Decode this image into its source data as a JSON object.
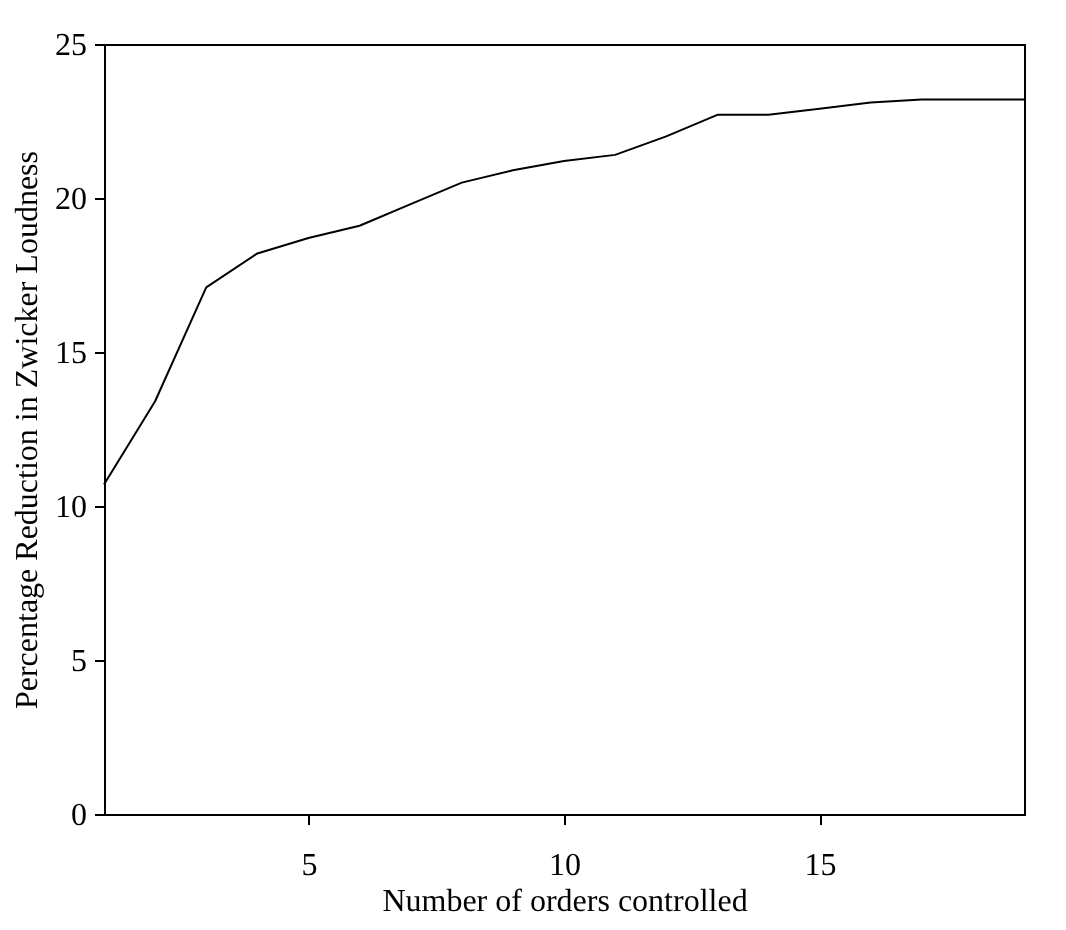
{
  "chart_data": {
    "type": "line",
    "xlabel": "Number of orders controlled",
    "ylabel": "Percentage Reduction in Zwicker Loudness",
    "x": [
      1,
      2,
      3,
      4,
      5,
      6,
      7,
      8,
      9,
      10,
      11,
      12,
      13,
      14,
      15,
      16,
      17,
      18,
      19
    ],
    "series": [
      {
        "color": "#000000",
        "values": [
          10.7,
          13.4,
          17.1,
          18.2,
          18.7,
          19.1,
          19.8,
          20.5,
          20.9,
          21.2,
          21.4,
          22.0,
          22.7,
          22.7,
          22.9,
          23.1,
          23.2,
          23.2,
          23.2
        ]
      }
    ],
    "xlim": [
      1,
      19
    ],
    "xticks": [
      5,
      10,
      15
    ],
    "ylim": [
      0,
      25
    ],
    "yticks": [
      0,
      5,
      10,
      15,
      20,
      25
    ],
    "grid": false,
    "marker": "none",
    "line_style": "solid"
  }
}
